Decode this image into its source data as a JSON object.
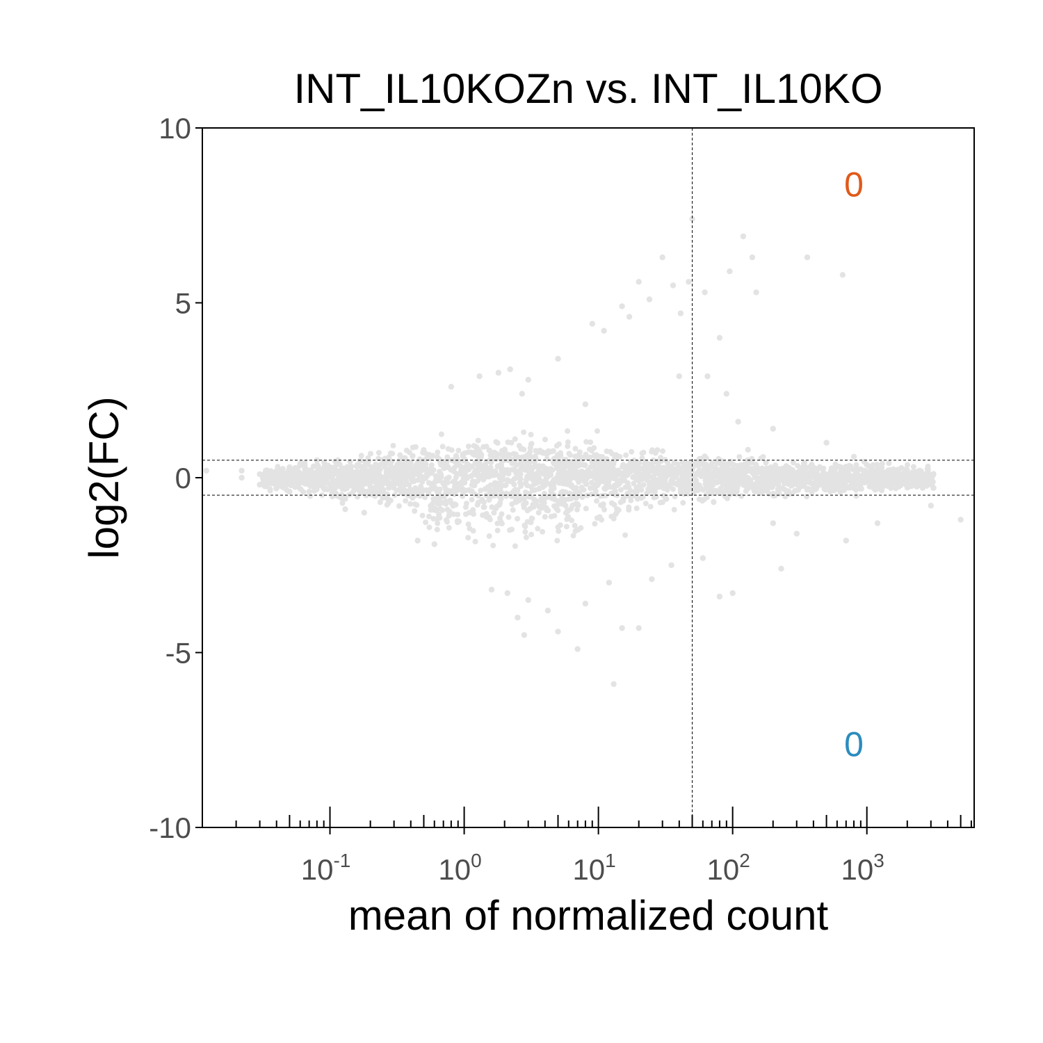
{
  "chart_data": {
    "type": "scatter",
    "title": "INT_IL10KOZn vs. INT_IL10KO",
    "xlabel": "mean of normalized count",
    "ylabel": "log2(FC)",
    "x_scale": "log10",
    "xlim": [
      0.0112,
      6300
    ],
    "ylim": [
      -10,
      10
    ],
    "y_ticks": [
      10,
      5,
      0,
      -5,
      -10
    ],
    "x_ticks": [
      {
        "value": 0.1,
        "base": "10",
        "exp": "-1"
      },
      {
        "value": 1,
        "base": "10",
        "exp": "0"
      },
      {
        "value": 10,
        "base": "10",
        "exp": "1"
      },
      {
        "value": 100,
        "base": "10",
        "exp": "2"
      },
      {
        "value": 1000,
        "base": "10",
        "exp": "3"
      }
    ],
    "reference_lines": {
      "vertical_x": 50,
      "horizontal_y": [
        0.5,
        -0.5
      ]
    },
    "counts": {
      "up": {
        "value": "0",
        "x": 800,
        "y": 8.4,
        "color": "#e05a1a"
      },
      "down": {
        "value": "0",
        "x": 800,
        "y": -7.6,
        "color": "#2b8cbe"
      }
    },
    "point_color": "#e3e3e3",
    "grid": false,
    "legend": "none",
    "series": [
      {
        "points": [
          [
            0.012,
            0.2
          ],
          [
            0.022,
            0.2
          ],
          [
            0.022,
            0.0
          ],
          [
            0.03,
            0.1
          ],
          [
            0.03,
            -0.2
          ],
          [
            0.04,
            0.2
          ],
          [
            0.04,
            -0.3
          ],
          [
            0.05,
            0.3
          ],
          [
            0.05,
            -0.4
          ],
          [
            0.06,
            0.4
          ],
          [
            0.07,
            -0.4
          ],
          [
            0.08,
            0.5
          ],
          [
            0.09,
            -0.3
          ],
          [
            0.13,
            -0.9
          ],
          [
            0.18,
            -1.0
          ],
          [
            2.2,
            3.1
          ],
          [
            1.8,
            3.0
          ],
          [
            1.3,
            2.9
          ],
          [
            0.8,
            2.6
          ],
          [
            3.0,
            2.8
          ],
          [
            2.7,
            2.4
          ],
          [
            0.45,
            -1.8
          ],
          [
            0.6,
            -1.9
          ],
          [
            1.6,
            -3.2
          ],
          [
            2.1,
            -3.3
          ],
          [
            3.0,
            -3.5
          ],
          [
            2.5,
            -4.0
          ],
          [
            4.2,
            -3.8
          ],
          [
            5.0,
            -4.4
          ],
          [
            2.8,
            -4.5
          ],
          [
            7.0,
            -4.9
          ],
          [
            8.0,
            -3.6
          ],
          [
            12.0,
            -3.0
          ],
          [
            15.0,
            -4.3
          ],
          [
            20.0,
            -4.3
          ],
          [
            13.0,
            -5.9
          ],
          [
            9.0,
            4.4
          ],
          [
            11.0,
            4.2
          ],
          [
            15.0,
            4.9
          ],
          [
            17.0,
            4.6
          ],
          [
            20.0,
            5.6
          ],
          [
            24.0,
            5.1
          ],
          [
            30.0,
            6.3
          ],
          [
            36.0,
            5.5
          ],
          [
            41.0,
            4.7
          ],
          [
            47.0,
            5.6
          ],
          [
            50.0,
            7.4
          ],
          [
            62.0,
            5.3
          ],
          [
            95.0,
            5.9
          ],
          [
            120.0,
            6.9
          ],
          [
            150.0,
            5.3
          ],
          [
            140.0,
            6.3
          ],
          [
            360.0,
            6.3
          ],
          [
            660.0,
            5.8
          ],
          [
            80.0,
            4.0
          ],
          [
            5.0,
            3.4
          ],
          [
            8.0,
            2.1
          ],
          [
            40.0,
            2.9
          ],
          [
            65.0,
            2.9
          ],
          [
            90.0,
            2.4
          ],
          [
            110.0,
            1.6
          ],
          [
            200.0,
            1.4
          ],
          [
            130.0,
            0.8
          ],
          [
            500.0,
            1.0
          ],
          [
            800.0,
            0.6
          ],
          [
            1300.0,
            0.4
          ],
          [
            2000.0,
            -0.2
          ],
          [
            3000.0,
            -0.8
          ],
          [
            5000.0,
            -1.2
          ],
          [
            1200.0,
            -1.3
          ],
          [
            700.0,
            -1.8
          ],
          [
            300.0,
            -1.6
          ],
          [
            200.0,
            -1.3
          ],
          [
            230.0,
            -2.6
          ],
          [
            100.0,
            -3.3
          ],
          [
            80.0,
            -3.4
          ],
          [
            60.0,
            -2.3
          ],
          [
            35.0,
            -2.5
          ],
          [
            25.0,
            -2.9
          ]
        ]
      }
    ]
  }
}
